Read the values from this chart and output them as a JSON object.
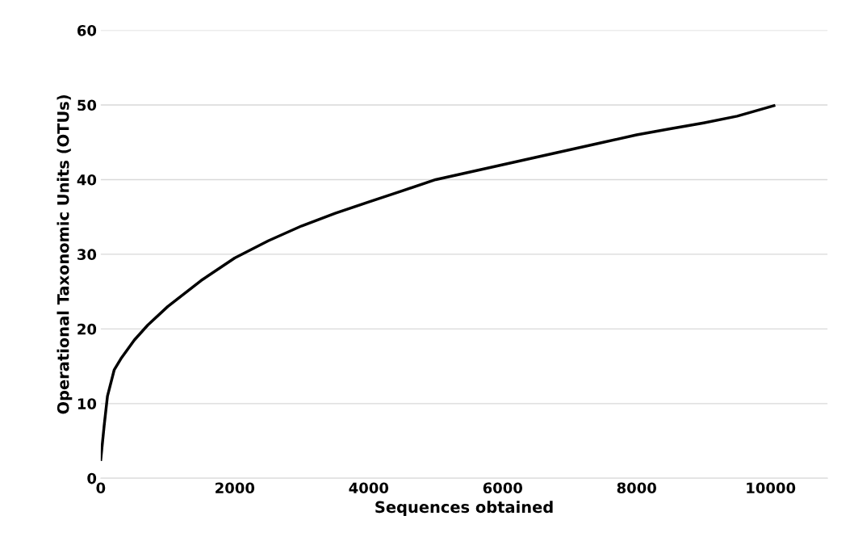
{
  "chart_data": {
    "type": "line",
    "xlabel": "Sequences obtained",
    "ylabel": "Operational Taxonomic Units (OTUs)",
    "series": [
      {
        "color": "#000000",
        "x": [
          0,
          50,
          100,
          200,
          300,
          500,
          700,
          1000,
          1500,
          2000,
          2500,
          3000,
          3500,
          4000,
          4500,
          5000,
          5500,
          6000,
          6500,
          7000,
          7500,
          8000,
          8500,
          9000,
          9500,
          10050
        ],
        "values": [
          2.5,
          7,
          11,
          14.5,
          16,
          18.5,
          20.5,
          23,
          26.5,
          29.5,
          31.8,
          33.8,
          35.5,
          37,
          38.5,
          40,
          41,
          42,
          43,
          44,
          45,
          46,
          46.8,
          47.6,
          48.5,
          49.9
        ]
      }
    ],
    "xlim": [
      0,
      10850
    ],
    "ylim": [
      0,
      60
    ],
    "xticks": [
      0,
      2000,
      4000,
      6000,
      8000,
      10000
    ],
    "yticks": [
      0,
      10,
      20,
      30,
      40,
      50,
      60
    ],
    "grid": "y",
    "legend": false,
    "marker": "none",
    "line_style": "solid"
  }
}
